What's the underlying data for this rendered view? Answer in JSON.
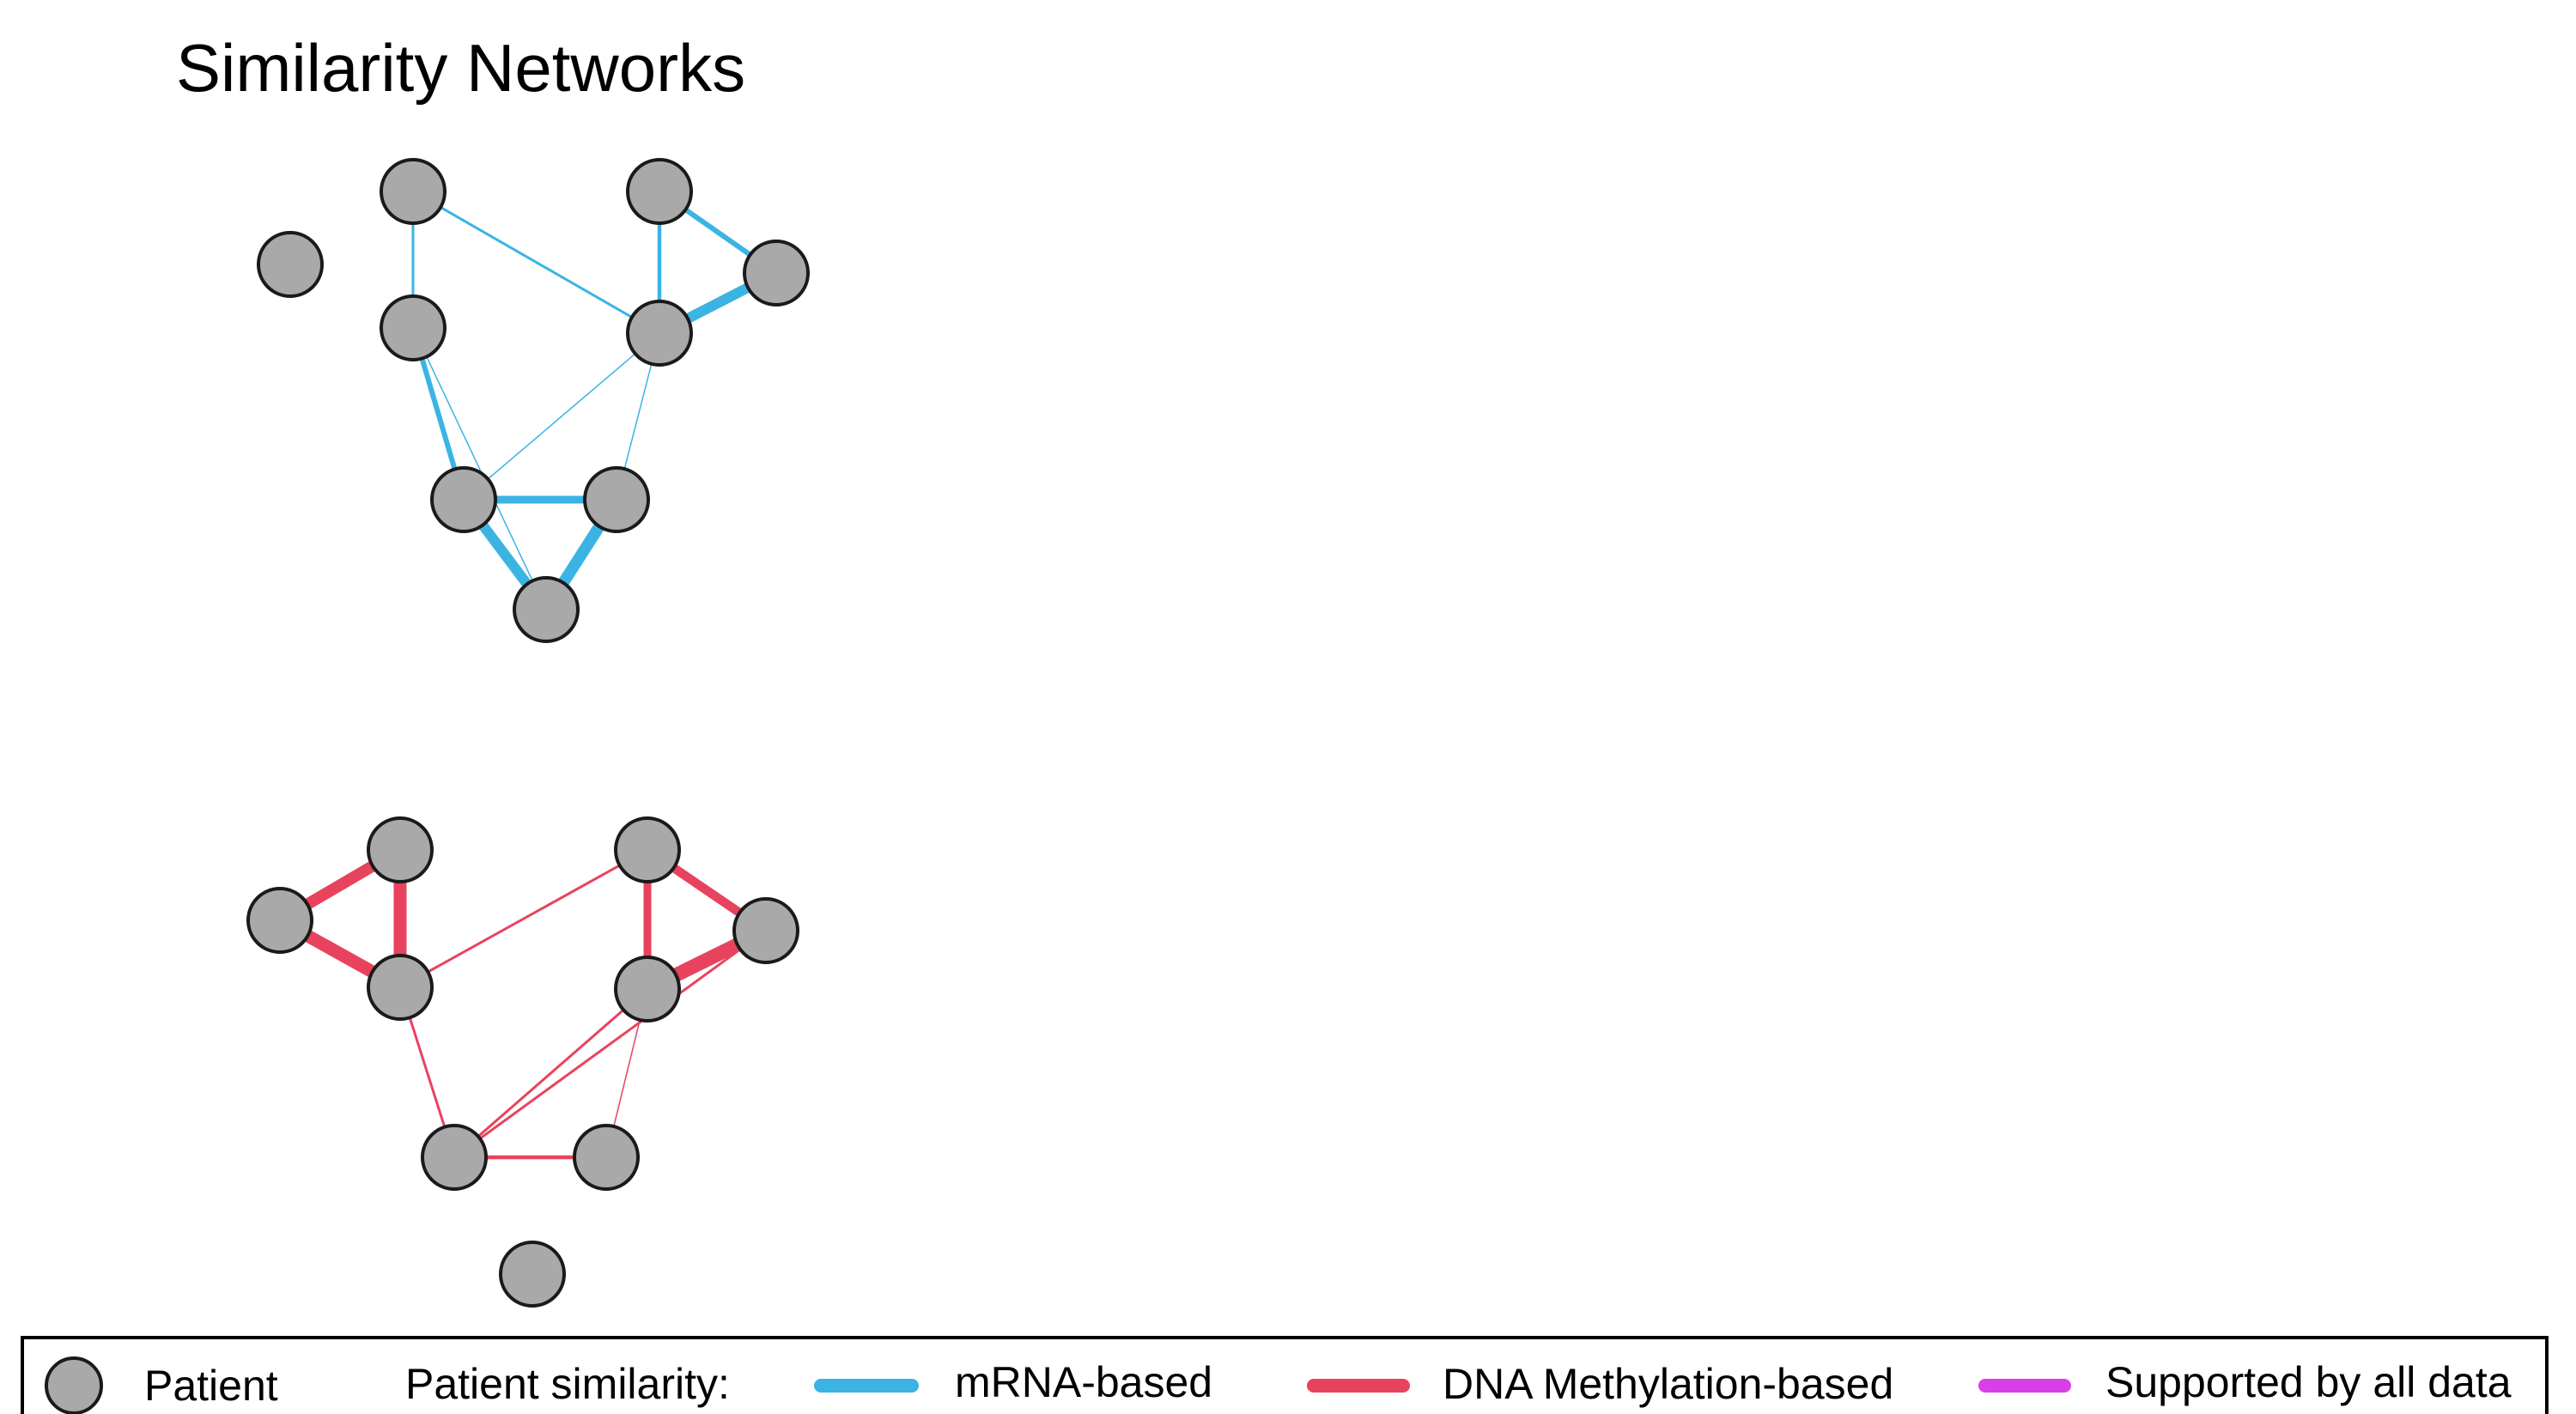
{
  "title": "Similarity Networks",
  "colors": {
    "node_fill": "#a9a9a9",
    "node_stroke": "#1a1a1a",
    "mrna": "#3bb4e3",
    "methylation": "#e8435e",
    "all_data": "#d93fe6"
  },
  "networks": [
    {
      "id": "mrna-network",
      "edge_type": "mrna",
      "nodes": [
        {
          "id": "p1"
        },
        {
          "id": "p2"
        },
        {
          "id": "p3"
        },
        {
          "id": "p4"
        },
        {
          "id": "p5"
        },
        {
          "id": "p6"
        },
        {
          "id": "p7"
        },
        {
          "id": "p8"
        },
        {
          "id": "p9"
        },
        {
          "id": "p10"
        }
      ],
      "edges": [
        {
          "source": "p2",
          "target": "p3",
          "weight": 2
        },
        {
          "source": "p2",
          "target": "p6",
          "weight": 2
        },
        {
          "source": "p3",
          "target": "p7",
          "weight": 1
        },
        {
          "source": "p3",
          "target": "p8",
          "weight": 4
        },
        {
          "source": "p4",
          "target": "p5",
          "weight": 4
        },
        {
          "source": "p4",
          "target": "p6",
          "weight": 3
        },
        {
          "source": "p5",
          "target": "p6",
          "weight": 8
        },
        {
          "source": "p6",
          "target": "p8",
          "weight": 1
        },
        {
          "source": "p6",
          "target": "p9",
          "weight": 1
        },
        {
          "source": "p7",
          "target": "p9",
          "weight": 9
        },
        {
          "source": "p8",
          "target": "p9",
          "weight": 6
        },
        {
          "source": "p8",
          "target": "p7",
          "weight": 8
        }
      ]
    },
    {
      "id": "methylation-network",
      "edge_type": "methylation",
      "nodes": [
        {
          "id": "p1"
        },
        {
          "id": "p2"
        },
        {
          "id": "p3"
        },
        {
          "id": "p4"
        },
        {
          "id": "p5"
        },
        {
          "id": "p6"
        },
        {
          "id": "p7"
        },
        {
          "id": "p8"
        },
        {
          "id": "p9"
        },
        {
          "id": "p10"
        }
      ],
      "edges": [
        {
          "source": "p1",
          "target": "p2",
          "weight": 9
        },
        {
          "source": "p1",
          "target": "p3",
          "weight": 10
        },
        {
          "source": "p2",
          "target": "p3",
          "weight": 10
        },
        {
          "source": "p3",
          "target": "p4",
          "weight": 2
        },
        {
          "source": "p3",
          "target": "p7",
          "weight": 2
        },
        {
          "source": "p4",
          "target": "p5",
          "weight": 7
        },
        {
          "source": "p4",
          "target": "p6",
          "weight": 6
        },
        {
          "source": "p5",
          "target": "p6",
          "weight": 11
        },
        {
          "source": "p5",
          "target": "p7",
          "weight": 2
        },
        {
          "source": "p6",
          "target": "p7",
          "weight": 2
        },
        {
          "source": "p6",
          "target": "p8",
          "weight": 1
        },
        {
          "source": "p7",
          "target": "p8",
          "weight": 3
        }
      ]
    }
  ],
  "legend": {
    "patient_label": "Patient",
    "similarity_label": "Patient similarity:",
    "items": [
      {
        "key": "mrna",
        "label": "mRNA-based"
      },
      {
        "key": "methylation",
        "label": "DNA Methylation-based"
      },
      {
        "key": "all_data",
        "label": "Supported by all data"
      }
    ]
  }
}
